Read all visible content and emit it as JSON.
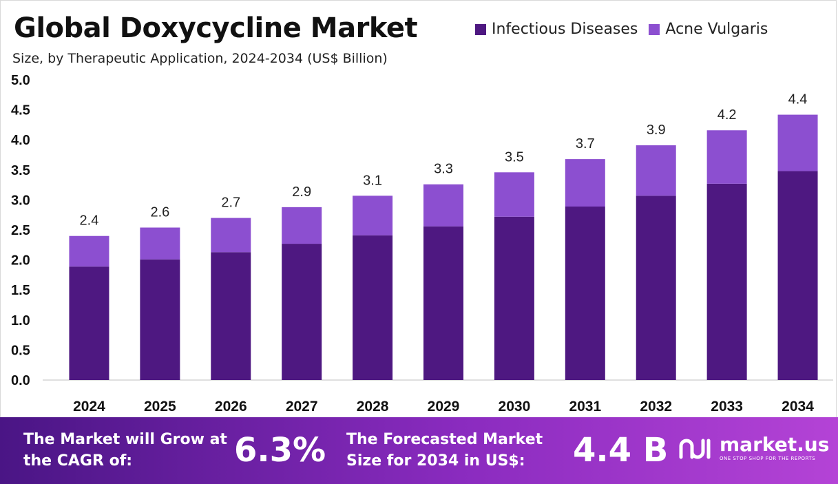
{
  "colors": {
    "infectious": "#4e1881",
    "acne": "#8c4fd0",
    "text": "#111111"
  },
  "chart_data": {
    "type": "bar",
    "stacked": true,
    "title": "Global Doxycycline Market",
    "subtitle": "Size, by Therapeutic Application, 2024-2034 (US$ Billion)",
    "categories": [
      "2024",
      "2025",
      "2026",
      "2027",
      "2028",
      "2029",
      "2030",
      "2031",
      "2032",
      "2033",
      "2034"
    ],
    "series": [
      {
        "name": "Infectious Diseases",
        "values": [
          1.89,
          2.01,
          2.13,
          2.27,
          2.41,
          2.56,
          2.72,
          2.89,
          3.07,
          3.27,
          3.48
        ]
      },
      {
        "name": "Acne Vulgaris",
        "values": [
          0.51,
          0.53,
          0.57,
          0.61,
          0.66,
          0.7,
          0.74,
          0.79,
          0.84,
          0.89,
          0.94
        ]
      }
    ],
    "total_labels": [
      "2.4",
      "2.6",
      "2.7",
      "2.9",
      "3.1",
      "3.3",
      "3.5",
      "3.7",
      "3.9",
      "4.2",
      "4.4"
    ],
    "yticks": [
      "0.0",
      "0.5",
      "1.0",
      "1.5",
      "2.0",
      "2.5",
      "3.0",
      "3.5",
      "4.0",
      "4.5",
      "5.0"
    ],
    "ylim": [
      0,
      5
    ],
    "xlabel": "",
    "ylabel": "",
    "legend_position": "top-right"
  },
  "banner": {
    "cagr_text": "The Market will Grow at the CAGR of:",
    "cagr_value": "6.3%",
    "forecast_text": "The Forecasted Market Size for 2034 in US$:",
    "forecast_value": "4.4 B",
    "logo_name": "market.us",
    "logo_tagline": "ONE STOP SHOP FOR THE REPORTS"
  }
}
